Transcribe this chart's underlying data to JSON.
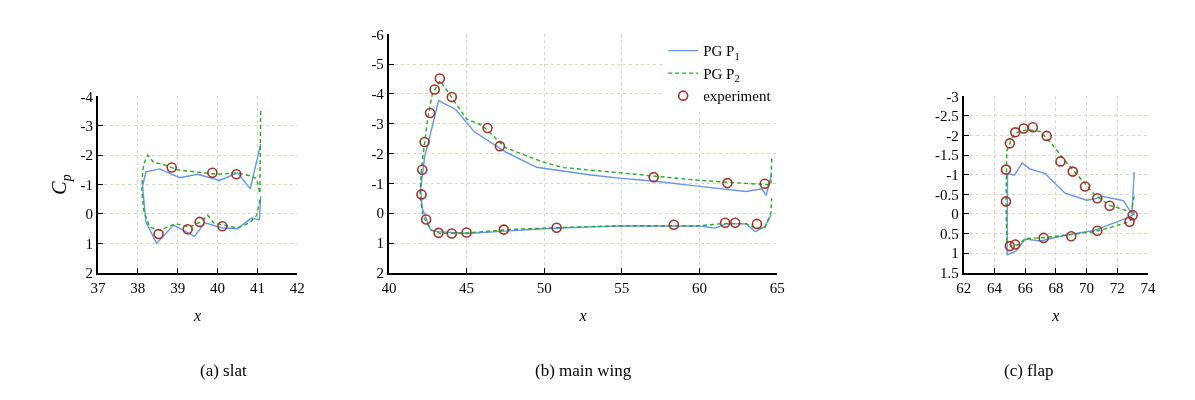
{
  "chart_data": [
    {
      "type": "line",
      "title": "(a) slat",
      "xlabel": "x",
      "ylabel": "C$_{p}$",
      "xlim": [
        37,
        42
      ],
      "xticks": [
        37,
        38,
        39,
        40,
        41,
        42
      ],
      "ylim": [
        2,
        -4
      ],
      "yticks": [
        2,
        1,
        0,
        -1,
        -2,
        -3,
        -4
      ],
      "grid": true,
      "series": [
        {
          "color": "#6495ed",
          "line_style": "solid",
          "x": [
            41.08,
            40.82,
            40.5,
            40.05,
            39.5,
            39.05,
            38.55,
            38.2,
            38.12,
            38.2,
            38.47,
            38.9,
            39.42,
            39.68,
            40.1,
            40.5,
            40.85,
            41.05,
            41.08
          ],
          "values": [
            -2.38,
            -0.85,
            -1.4,
            -1.14,
            -1.35,
            -1.23,
            -1.53,
            -1.43,
            -0.94,
            0.27,
            1.0,
            0.38,
            0.76,
            0.3,
            0.47,
            0.5,
            0.14,
            0.2,
            -0.58
          ]
        },
        {
          "color": "#22aa22",
          "line_style": "dashed",
          "x": [
            41.08,
            41.06,
            40.98,
            40.8,
            40.5,
            40.0,
            39.5,
            39.0,
            38.6,
            38.4,
            38.25,
            38.15,
            38.12,
            38.1,
            38.15,
            38.3,
            38.55,
            38.95,
            39.3,
            39.6,
            39.75,
            39.9,
            40.5,
            40.8,
            40.98,
            41.05,
            41.08
          ],
          "values": [
            -3.5,
            -0.7,
            -1.2,
            -1.3,
            -1.4,
            -1.35,
            -1.42,
            -1.5,
            -1.7,
            -1.75,
            -2.0,
            -1.7,
            -1.4,
            -0.8,
            -0.1,
            0.45,
            0.55,
            0.33,
            0.45,
            0.25,
            0.04,
            0.3,
            0.48,
            0.3,
            0.05,
            -0.4,
            -0.6
          ]
        },
        {
          "type": "scatter",
          "color": "#a0332d",
          "marker": "circle",
          "x": [
            38.85,
            39.87,
            40.47,
            38.52,
            39.25,
            39.55,
            40.12
          ],
          "values": [
            -1.58,
            -1.4,
            -1.35,
            0.68,
            0.52,
            0.27,
            0.42
          ]
        }
      ]
    },
    {
      "type": "line",
      "title": "(b) main wing",
      "xlabel": "x",
      "xlim": [
        40,
        65
      ],
      "xticks": [
        40,
        45,
        50,
        55,
        60,
        65
      ],
      "ylim": [
        2,
        -6
      ],
      "yticks": [
        2,
        1,
        0,
        -1,
        -2,
        -3,
        -4,
        -5,
        -6
      ],
      "grid": true,
      "legend": "top right",
      "series": [
        {
          "name": "PG P$_{1}$",
          "color": "#6495ed",
          "line_style": "solid",
          "x": [
            64.62,
            64.3,
            64.0,
            63.0,
            60.0,
            57.0,
            55.0,
            53.0,
            49.5,
            47.5,
            45.5,
            44.3,
            43.2,
            42.6,
            42.3,
            42.05,
            42.15,
            42.7,
            43.2,
            45.0,
            47.5,
            50.0,
            53.0,
            55.0,
            60.0,
            61.0,
            61.7,
            63.0,
            63.6,
            64.2,
            64.62
          ],
          "values": [
            -1.28,
            -0.6,
            -0.82,
            -0.73,
            -0.9,
            -1.08,
            -1.17,
            -1.28,
            -1.54,
            -2.06,
            -2.73,
            -3.48,
            -3.78,
            -2.5,
            -1.9,
            -0.8,
            -0.16,
            0.58,
            0.62,
            0.68,
            0.6,
            0.52,
            0.46,
            0.43,
            0.43,
            0.5,
            0.36,
            0.36,
            0.62,
            0.45,
            0.06
          ]
        },
        {
          "name": "PG P$_{2}$",
          "color": "#22aa22",
          "line_style": "dashed",
          "x": [
            64.65,
            64.6,
            63.0,
            60.0,
            57.0,
            55.0,
            51.25,
            50.0,
            47.5,
            46.0,
            45.0,
            43.3,
            42.8,
            42.5,
            42.1,
            42.0,
            42.2,
            42.7,
            43.3,
            45.0,
            47.5,
            50.0,
            55.0,
            60.0,
            61.5,
            63.0,
            63.6,
            64.2,
            64.6,
            64.65
          ],
          "values": [
            -1.83,
            -0.95,
            -1.0,
            -1.1,
            -1.25,
            -1.35,
            -1.53,
            -1.7,
            -2.2,
            -2.95,
            -3.16,
            -4.45,
            -4.0,
            -3.2,
            -1.5,
            -0.6,
            0.1,
            0.55,
            0.68,
            0.66,
            0.56,
            0.5,
            0.42,
            0.42,
            0.35,
            0.35,
            0.5,
            0.5,
            0.0,
            -0.5
          ]
        },
        {
          "type": "scatter",
          "name": "experiment",
          "color": "#a0332d",
          "marker": "circle",
          "x": [
            42.1,
            42.15,
            42.3,
            42.65,
            42.95,
            43.28,
            44.05,
            46.35,
            47.15,
            57.05,
            61.8,
            64.2,
            42.4,
            43.2,
            44.05,
            45.0,
            47.4,
            50.8,
            58.35,
            61.65,
            62.3,
            63.7
          ],
          "values": [
            -0.63,
            -1.46,
            -2.39,
            -3.36,
            -4.15,
            -4.52,
            -3.9,
            -2.86,
            -2.25,
            -1.21,
            -1.01,
            -0.99,
            0.21,
            0.66,
            0.68,
            0.65,
            0.55,
            0.49,
            0.39,
            0.32,
            0.32,
            0.36
          ]
        }
      ]
    },
    {
      "type": "line",
      "title": "(c) flap",
      "xlabel": "x",
      "xlim": [
        62,
        74
      ],
      "xticks": [
        62,
        64,
        66,
        68,
        70,
        72,
        74
      ],
      "ylim": [
        1.5,
        -3
      ],
      "yticks": [
        1.5,
        1,
        0.5,
        0,
        -0.5,
        -1,
        -1.5,
        -2,
        -2.5,
        -3
      ],
      "grid": true,
      "series": [
        {
          "color": "#6495ed",
          "line_style": "solid",
          "x": [
            73.1,
            72.95,
            72.4,
            71.0,
            70.5,
            70.0,
            68.6,
            67.3,
            66.3,
            65.8,
            65.3,
            64.85,
            64.82,
            65.4,
            66.0,
            67.0,
            68.5,
            70.5,
            72.4,
            73.0,
            73.1
          ],
          "values": [
            -1.07,
            0.0,
            -0.34,
            -0.45,
            -0.38,
            -0.35,
            -0.53,
            -1.03,
            -1.15,
            -1.3,
            -0.99,
            -1.03,
            1.04,
            0.95,
            0.64,
            0.69,
            0.55,
            0.42,
            0.14,
            0.03,
            -0.05
          ]
        },
        {
          "color": "#22aa22",
          "line_style": "dashed",
          "x": [
            73.1,
            72.9,
            71.5,
            70.5,
            69.5,
            68.5,
            67.8,
            67.0,
            66.2,
            65.6,
            65.2,
            64.8,
            64.75,
            64.8,
            65.1,
            65.6,
            66.0,
            67.3,
            68.5,
            70.5,
            71.5,
            72.8,
            73.1
          ],
          "values": [
            -0.45,
            -0.05,
            -0.22,
            -0.5,
            -0.95,
            -1.4,
            -1.75,
            -2.1,
            -2.15,
            -2.1,
            -2.0,
            -1.6,
            -0.3,
            0.7,
            0.82,
            0.78,
            0.63,
            0.6,
            0.55,
            0.45,
            0.35,
            0.2,
            0.0
          ]
        },
        {
          "type": "scatter",
          "color": "#a0332d",
          "marker": "circle",
          "x": [
            64.75,
            64.75,
            65.0,
            65.35,
            65.9,
            66.5,
            67.4,
            68.3,
            69.1,
            69.9,
            70.7,
            71.5,
            72.8,
            73.0,
            65.0,
            65.35,
            67.2,
            69.0,
            70.7
          ],
          "values": [
            -1.13,
            -0.32,
            -1.8,
            -2.08,
            -2.18,
            -2.21,
            -1.99,
            -1.34,
            -1.08,
            -0.7,
            -0.4,
            -0.21,
            0.2,
            0.03,
            0.82,
            0.78,
            0.61,
            0.57,
            0.43
          ]
        }
      ]
    }
  ]
}
